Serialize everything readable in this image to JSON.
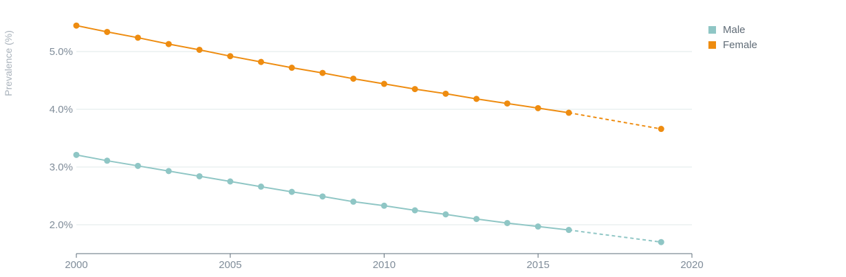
{
  "chart_data": {
    "type": "line",
    "ylabel": "Prevalence (%)",
    "xlabel": "",
    "xlim": [
      2000,
      2020
    ],
    "ylim": [
      1.5,
      5.5
    ],
    "x_ticks": [
      2000,
      2005,
      2010,
      2015,
      2020
    ],
    "y_ticks": [
      2.0,
      3.0,
      4.0,
      5.0
    ],
    "y_tick_labels": [
      "2.0%",
      "3.0%",
      "4.0%",
      "5.0%"
    ],
    "grid": "horizontal",
    "legend_position": "top-right",
    "solid_until": 2016,
    "series": [
      {
        "name": "Male",
        "color": "#8fc6c5",
        "points": [
          {
            "x": 2000,
            "y": 3.21
          },
          {
            "x": 2001,
            "y": 3.11
          },
          {
            "x": 2002,
            "y": 3.02
          },
          {
            "x": 2003,
            "y": 2.93
          },
          {
            "x": 2004,
            "y": 2.84
          },
          {
            "x": 2005,
            "y": 2.75
          },
          {
            "x": 2006,
            "y": 2.66
          },
          {
            "x": 2007,
            "y": 2.57
          },
          {
            "x": 2008,
            "y": 2.49
          },
          {
            "x": 2009,
            "y": 2.4
          },
          {
            "x": 2010,
            "y": 2.33
          },
          {
            "x": 2011,
            "y": 2.25
          },
          {
            "x": 2012,
            "y": 2.18
          },
          {
            "x": 2013,
            "y": 2.1
          },
          {
            "x": 2014,
            "y": 2.03
          },
          {
            "x": 2015,
            "y": 1.97
          },
          {
            "x": 2016,
            "y": 1.91
          },
          {
            "x": 2019,
            "y": 1.7
          }
        ]
      },
      {
        "name": "Female",
        "color": "#ee8c10",
        "points": [
          {
            "x": 2000,
            "y": 5.45
          },
          {
            "x": 2001,
            "y": 5.34
          },
          {
            "x": 2002,
            "y": 5.24
          },
          {
            "x": 2003,
            "y": 5.13
          },
          {
            "x": 2004,
            "y": 5.03
          },
          {
            "x": 2005,
            "y": 4.92
          },
          {
            "x": 2006,
            "y": 4.82
          },
          {
            "x": 2007,
            "y": 4.72
          },
          {
            "x": 2008,
            "y": 4.63
          },
          {
            "x": 2009,
            "y": 4.53
          },
          {
            "x": 2010,
            "y": 4.44
          },
          {
            "x": 2011,
            "y": 4.35
          },
          {
            "x": 2012,
            "y": 4.27
          },
          {
            "x": 2013,
            "y": 4.18
          },
          {
            "x": 2014,
            "y": 4.1
          },
          {
            "x": 2015,
            "y": 4.02
          },
          {
            "x": 2016,
            "y": 3.94
          },
          {
            "x": 2019,
            "y": 3.66
          }
        ]
      }
    ]
  }
}
